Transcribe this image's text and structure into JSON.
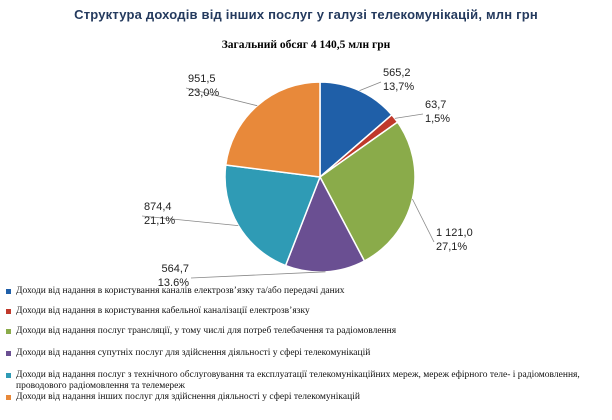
{
  "title": "Структура доходів  від інших послуг у галузі телекомунікацій, млн грн",
  "subtitle": "Загальний  обсяг 4 140,5 млн грн",
  "chart_data": {
    "type": "pie",
    "title": "Структура доходів  від інших послуг у галузі телекомунікацій, млн грн",
    "subtitle": "Загальний  обсяг 4 140,5 млн грн",
    "slices": [
      {
        "name": "Доходи від  надання в користування каналів електрозв’язку та/або передачі даних",
        "value": 565.2,
        "value_label": "565,2",
        "percent": 13.7,
        "percent_label": "13,7%",
        "color": "#1f5fa8"
      },
      {
        "name": "Доходи від  надання в користування кабельної каналізації  електрозв’язку",
        "value": 63.7,
        "value_label": "63,7",
        "percent": 1.5,
        "percent_label": "1,5%",
        "color": "#c0392b"
      },
      {
        "name": "Доходи від  надання послуг трансляції, у тому числі для  потреб телебачення та радіомовлення",
        "value": 1121.0,
        "value_label": "1 121,0",
        "percent": 27.1,
        "percent_label": "27,1%",
        "color": "#8aab4a"
      },
      {
        "name": "Доходи від  надання супутніх послуг для здійснення діяльності  у сфері телекомунікацій",
        "value": 564.7,
        "value_label": "564,7",
        "percent": 13.6,
        "percent_label": "13,6%",
        "color": "#6a4f92"
      },
      {
        "name": "Доходи від  надання послуг з технічного  обслуговування та експлуатації телекомунікаційних мереж, мереж ефірного теле- і радіомовлення, проводового радіомовлення та телемереж",
        "value": 874.4,
        "value_label": "874,4",
        "percent": 21.1,
        "percent_label": "21,1%",
        "color": "#2f9bb5"
      },
      {
        "name": "Доходи від  надання інших  послуг для здійснення діяльності  у сфері телекомунікацій",
        "value": 951.5,
        "value_label": "951,5",
        "percent": 23.0,
        "percent_label": "23,0%",
        "color": "#e8893a"
      }
    ],
    "legend_position": "bottom"
  }
}
